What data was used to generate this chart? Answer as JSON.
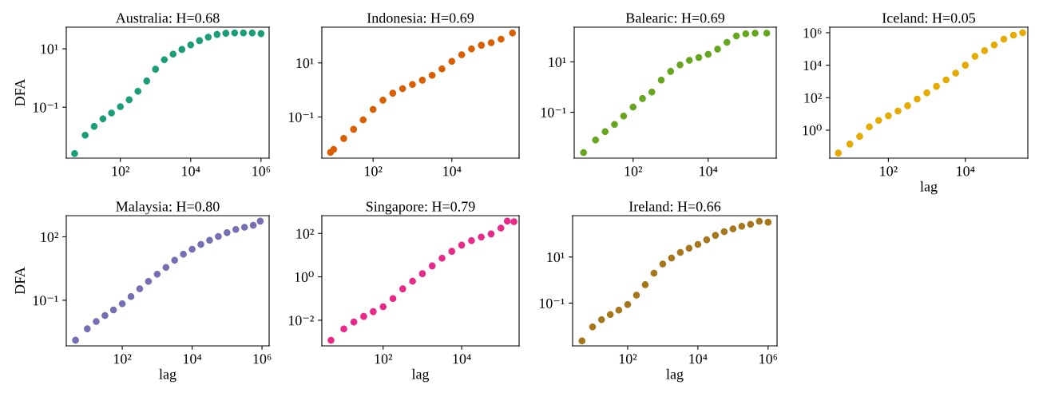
{
  "chart_data": [
    {
      "type": "scatter",
      "title": "Australia: H=0.68",
      "ylabel": "DFA",
      "log": "xy",
      "marker": "circle",
      "xlim": [
        2.9,
        1700000
      ],
      "ylim": [
        0.0018,
        55
      ],
      "xticks": [
        {
          "value": 100,
          "label": "10²"
        },
        {
          "value": 10000,
          "label": "10⁴"
        },
        {
          "value": 1000000,
          "label": "10⁶"
        }
      ],
      "yticks": [
        {
          "value": 0.1,
          "label": "10⁻¹"
        },
        {
          "value": 10,
          "label": "10¹"
        }
      ],
      "x": [
        5,
        10,
        18,
        32,
        56,
        100,
        178,
        316,
        562,
        1000,
        1780,
        3160,
        5620,
        10000,
        17800,
        31600,
        56200,
        100000,
        178000,
        316000,
        562000,
        1000000
      ],
      "series": [
        {
          "color": "#1b9e77",
          "values": [
            0.0026,
            0.011,
            0.022,
            0.04,
            0.063,
            0.105,
            0.18,
            0.35,
            0.79,
            2.0,
            4.2,
            6.6,
            9.5,
            13.5,
            19,
            25,
            31,
            34,
            35,
            35,
            35,
            33
          ]
        }
      ]
    },
    {
      "type": "scatter",
      "title": "Indonesia: H=0.69",
      "log": "xy",
      "marker": "circle",
      "xlim": [
        5.0,
        510000
      ],
      "ylim": [
        0.003,
        210
      ],
      "xticks": [
        {
          "value": 100,
          "label": "10²"
        },
        {
          "value": 10000,
          "label": "10⁴"
        }
      ],
      "yticks": [
        {
          "value": 0.1,
          "label": "10⁻¹"
        },
        {
          "value": 10,
          "label": "10¹"
        }
      ],
      "x": [
        8.3,
        10,
        18,
        32,
        56,
        100,
        178,
        316,
        562,
        1000,
        1780,
        3160,
        5620,
        10000,
        17800,
        31600,
        56200,
        100000,
        178000,
        347000
      ],
      "series": [
        {
          "color": "#d95f02",
          "values": [
            0.0049,
            0.0063,
            0.016,
            0.035,
            0.079,
            0.19,
            0.42,
            0.76,
            1.12,
            1.6,
            2.3,
            3.5,
            6.0,
            11.5,
            20,
            33,
            45,
            56,
            76,
            129
          ]
        }
      ]
    },
    {
      "type": "scatter",
      "title": "Balearic: H=0.69",
      "log": "xy",
      "marker": "circle",
      "xlim": [
        2.7,
        650000
      ],
      "ylim": [
        0.0015,
        240
      ],
      "xticks": [
        {
          "value": 100,
          "label": "10²"
        },
        {
          "value": 10000,
          "label": "10⁴"
        }
      ],
      "yticks": [
        {
          "value": 0.1,
          "label": "10⁻¹"
        },
        {
          "value": 10,
          "label": "10¹"
        }
      ],
      "x": [
        4.8,
        10,
        18,
        32,
        56,
        100,
        178,
        316,
        562,
        1000,
        1780,
        3160,
        5620,
        10000,
        17800,
        31600,
        56200,
        100000,
        178000,
        363000
      ],
      "series": [
        {
          "color": "#66a61e",
          "values": [
            0.0025,
            0.0079,
            0.017,
            0.033,
            0.071,
            0.16,
            0.35,
            0.63,
            1.9,
            4.2,
            7.6,
            11.5,
            15,
            20,
            32,
            60,
            107,
            132,
            138,
            138
          ]
        }
      ]
    },
    {
      "type": "scatter",
      "title": "Iceland: H=0.05",
      "xlabel": "lag",
      "log": "xy",
      "marker": "circle",
      "xlim": [
        3.0,
        420000
      ],
      "ylim": [
        0.019,
        2200000
      ],
      "xticks": [
        {
          "value": 100,
          "label": "10²"
        },
        {
          "value": 10000,
          "label": "10⁴"
        }
      ],
      "yticks": [
        {
          "value": 1,
          "label": "10⁰"
        },
        {
          "value": 100,
          "label": "10²"
        },
        {
          "value": 10000,
          "label": "10⁴"
        },
        {
          "value": 1000000,
          "label": "10⁶"
        }
      ],
      "x": [
        5,
        10,
        18,
        32,
        56,
        100,
        178,
        316,
        562,
        1000,
        1780,
        3160,
        5620,
        10000,
        17800,
        31600,
        56200,
        100000,
        178000,
        309000
      ],
      "series": [
        {
          "color": "#e6ab02",
          "values": [
            0.039,
            0.14,
            0.42,
            1.6,
            4,
            7.6,
            15,
            32,
            83,
            200,
            500,
            1260,
            3300,
            10000,
            35000,
            79000,
            178000,
            400000,
            710000,
            1000000
          ]
        }
      ]
    },
    {
      "type": "scatter",
      "title": "Malaysia: H=0.80",
      "xlabel": "lag",
      "ylabel": "DFA",
      "log": "xy",
      "marker": "circle",
      "xlim": [
        2.5,
        1600000
      ],
      "ylim": [
        0.0007,
        1000
      ],
      "xticks": [
        {
          "value": 100,
          "label": "10²"
        },
        {
          "value": 10000,
          "label": "10⁴"
        },
        {
          "value": 1000000,
          "label": "10⁶"
        }
      ],
      "yticks": [
        {
          "value": 0.1,
          "label": "10⁻¹"
        },
        {
          "value": 100,
          "label": "10²"
        }
      ],
      "x": [
        4.6,
        10,
        18,
        32,
        56,
        100,
        178,
        316,
        562,
        1000,
        1780,
        3160,
        5620,
        10000,
        17800,
        31600,
        56200,
        100000,
        178000,
        316000,
        562000,
        891000
      ],
      "series": [
        {
          "color": "#7570b3",
          "values": [
            0.0013,
            0.0045,
            0.01,
            0.019,
            0.035,
            0.069,
            0.15,
            0.35,
            0.79,
            1.7,
            3.6,
            7.9,
            15,
            26,
            44,
            69,
            105,
            158,
            224,
            282,
            355,
            550
          ]
        }
      ]
    },
    {
      "type": "scatter",
      "title": "Singapore: H=0.79",
      "xlabel": "lag",
      "log": "xy",
      "marker": "circle",
      "xlim": [
        2.75,
        290000
      ],
      "ylim": [
        0.00066,
        660
      ],
      "xticks": [
        {
          "value": 100,
          "label": "10²"
        },
        {
          "value": 10000,
          "label": "10⁴"
        }
      ],
      "yticks": [
        {
          "value": 0.01,
          "label": "10⁻²"
        },
        {
          "value": 1,
          "label": "10⁰"
        },
        {
          "value": 100,
          "label": "10²"
        }
      ],
      "x": [
        4.7,
        10,
        18,
        32,
        56,
        100,
        178,
        316,
        562,
        1000,
        1780,
        3160,
        5620,
        10000,
        17800,
        31600,
        56200,
        100000,
        145000,
        214000
      ],
      "series": [
        {
          "color": "#e7298a",
          "values": [
            0.0012,
            0.004,
            0.0083,
            0.015,
            0.025,
            0.042,
            0.1,
            0.28,
            0.63,
            1.4,
            3.2,
            7.2,
            15,
            29,
            47,
            68,
            95,
            178,
            372,
            347
          ]
        }
      ]
    },
    {
      "type": "scatter",
      "title": "Ireland: H=0.66",
      "xlabel": "lag",
      "log": "xy",
      "marker": "circle",
      "xlim": [
        2.7,
        1800000
      ],
      "ylim": [
        0.0014,
        620
      ],
      "xticks": [
        {
          "value": 100,
          "label": "10²"
        },
        {
          "value": 10000,
          "label": "10⁴"
        },
        {
          "value": 1000000,
          "label": "10⁶"
        }
      ],
      "yticks": [
        {
          "value": 0.1,
          "label": "10⁻¹"
        },
        {
          "value": 10,
          "label": "10¹"
        }
      ],
      "x": [
        5,
        10,
        18,
        32,
        56,
        100,
        178,
        316,
        562,
        1000,
        1780,
        3160,
        5620,
        10000,
        17800,
        31600,
        56200,
        100000,
        178000,
        316000,
        562000,
        1000000
      ],
      "series": [
        {
          "color": "#a6761d",
          "values": [
            0.0023,
            0.0093,
            0.019,
            0.032,
            0.05,
            0.087,
            0.22,
            0.63,
            2.0,
            5.0,
            9.1,
            15.8,
            24,
            35,
            56,
            87,
            126,
            166,
            214,
            263,
            355,
            324
          ]
        }
      ]
    }
  ]
}
